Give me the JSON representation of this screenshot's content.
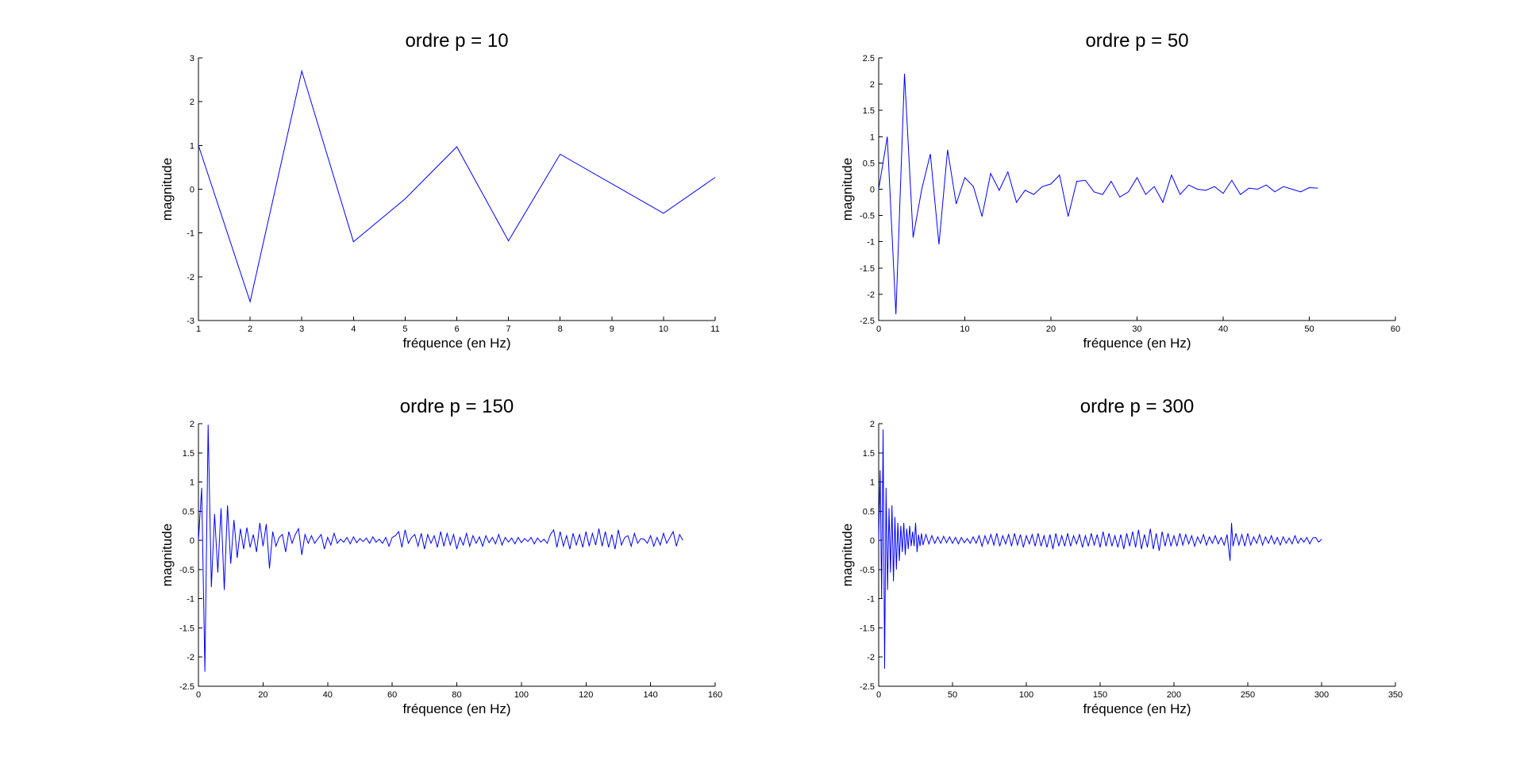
{
  "colors": {
    "line": "#0000ff",
    "axes": "#000000",
    "background": "#ffffff"
  },
  "chart_data": [
    {
      "type": "line",
      "title": "ordre p = 10",
      "xlabel": "fréquence (en Hz)",
      "ylabel": "magnitude",
      "xlim": [
        1,
        11
      ],
      "ylim": [
        -3,
        3
      ],
      "xticks": [
        1,
        2,
        3,
        4,
        5,
        6,
        7,
        8,
        9,
        10,
        11
      ],
      "yticks": [
        -3,
        -2,
        -1,
        0,
        1,
        2,
        3
      ],
      "grid": false,
      "series": [
        {
          "x": [
            1,
            2,
            3,
            4,
            5,
            6,
            7,
            8,
            10,
            11
          ],
          "y": [
            1.0,
            -2.57,
            2.7,
            -1.2,
            -0.22,
            0.97,
            -1.18,
            0.8,
            -0.55,
            0.27
          ]
        }
      ]
    },
    {
      "type": "line",
      "title": "ordre p = 50",
      "xlabel": "fréquence (en Hz)",
      "ylabel": "magnitude",
      "xlim": [
        0,
        60
      ],
      "ylim": [
        -2.5,
        2.5
      ],
      "xticks": [
        0,
        10,
        20,
        30,
        40,
        50,
        60
      ],
      "yticks": [
        -2.5,
        -2,
        -1.5,
        -1,
        -0.5,
        0,
        0.5,
        1,
        1.5,
        2,
        2.5
      ],
      "grid": false,
      "series": [
        {
          "x": [
            0,
            1,
            2,
            3,
            4,
            5,
            6,
            7,
            8,
            9,
            10,
            11,
            12,
            13,
            14,
            15,
            16,
            17,
            18,
            19,
            20,
            21,
            22,
            23,
            24,
            25,
            26,
            27,
            28,
            29,
            30,
            31,
            32,
            33,
            34,
            35,
            36,
            37,
            38,
            39,
            40,
            41,
            42,
            43,
            44,
            45,
            46,
            47,
            48,
            49,
            50,
            51
          ],
          "y": [
            0.0,
            1.0,
            -2.38,
            2.2,
            -0.92,
            0.0,
            0.67,
            -1.05,
            0.75,
            -0.28,
            0.22,
            0.05,
            -0.52,
            0.3,
            -0.02,
            0.33,
            -0.25,
            -0.02,
            -0.1,
            0.05,
            0.1,
            0.27,
            -0.52,
            0.15,
            0.17,
            -0.05,
            -0.1,
            0.15,
            -0.15,
            -0.05,
            0.22,
            -0.1,
            0.05,
            -0.25,
            0.27,
            -0.1,
            0.08,
            0.0,
            -0.02,
            0.05,
            -0.08,
            0.17,
            -0.1,
            0.02,
            0.0,
            0.08,
            -0.05,
            0.05,
            0.0,
            -0.05,
            0.03,
            0.02
          ]
        }
      ]
    },
    {
      "type": "line",
      "title": "ordre p = 150",
      "xlabel": "fréquence (en Hz)",
      "ylabel": "magnitude",
      "xlim": [
        0,
        160
      ],
      "ylim": [
        -2.5,
        2
      ],
      "xticks": [
        0,
        20,
        40,
        60,
        80,
        100,
        120,
        140,
        160
      ],
      "yticks": [
        -2.5,
        -2,
        -1.5,
        -1,
        -0.5,
        0,
        0.5,
        1,
        1.5,
        2
      ],
      "grid": false,
      "series": [
        {
          "x": [
            0,
            1,
            2,
            3,
            4,
            5,
            6,
            7,
            8,
            9,
            10,
            11,
            12,
            13,
            14,
            15,
            16,
            17,
            18,
            19,
            20,
            21,
            22,
            23,
            24,
            25,
            26,
            27,
            28,
            29,
            30,
            31,
            32,
            33,
            34,
            35,
            36,
            37,
            38,
            39,
            40,
            41,
            42,
            43,
            44,
            45,
            46,
            47,
            48,
            49,
            50,
            51,
            52,
            53,
            54,
            55,
            56,
            57,
            58,
            59,
            60,
            61,
            62,
            63,
            64,
            65,
            66,
            67,
            68,
            69,
            70,
            71,
            72,
            73,
            74,
            75,
            76,
            77,
            78,
            79,
            80,
            81,
            82,
            83,
            84,
            85,
            86,
            87,
            88,
            89,
            90,
            91,
            92,
            93,
            94,
            95,
            96,
            97,
            98,
            99,
            100,
            101,
            102,
            103,
            104,
            105,
            106,
            107,
            108,
            109,
            110,
            111,
            112,
            113,
            114,
            115,
            116,
            117,
            118,
            119,
            120,
            121,
            122,
            123,
            124,
            125,
            126,
            127,
            128,
            129,
            130,
            131,
            132,
            133,
            134,
            135,
            136,
            137,
            138,
            139,
            140,
            141,
            142,
            143,
            144,
            145,
            146,
            147,
            148,
            149,
            150
          ],
          "y": [
            0.0,
            0.9,
            -2.25,
            1.98,
            -0.8,
            0.45,
            -0.55,
            0.55,
            -0.85,
            0.6,
            -0.4,
            0.35,
            -0.3,
            0.2,
            -0.15,
            0.22,
            -0.12,
            0.1,
            -0.2,
            0.3,
            -0.1,
            0.28,
            -0.48,
            0.15,
            -0.1,
            0.05,
            0.1,
            -0.2,
            0.15,
            -0.05,
            0.1,
            0.2,
            -0.25,
            0.1,
            -0.05,
            0.08,
            -0.05,
            0.03,
            0.1,
            -0.15,
            0.05,
            -0.08,
            0.12,
            -0.05,
            0.02,
            -0.03,
            0.05,
            -0.06,
            0.06,
            -0.04,
            0.03,
            -0.02,
            0.04,
            -0.05,
            0.06,
            -0.03,
            0.02,
            -0.05,
            0.05,
            -0.1,
            0.05,
            0.08,
            0.15,
            -0.12,
            0.18,
            -0.05,
            0.05,
            0.1,
            -0.1,
            0.12,
            -0.15,
            0.1,
            -0.05,
            0.08,
            -0.12,
            0.15,
            -0.1,
            0.12,
            -0.08,
            0.1,
            -0.15,
            0.05,
            -0.08,
            0.12,
            -0.1,
            0.08,
            -0.05,
            0.06,
            -0.1,
            0.08,
            -0.04,
            0.05,
            -0.06,
            0.1,
            -0.08,
            0.05,
            -0.03,
            0.04,
            -0.06,
            0.05,
            -0.04,
            0.03,
            -0.02,
            0.05,
            -0.06,
            0.04,
            -0.03,
            0.02,
            -0.05,
            0.1,
            0.18,
            -0.12,
            0.15,
            -0.1,
            0.08,
            -0.15,
            0.12,
            -0.08,
            0.1,
            -0.12,
            0.15,
            -0.1,
            0.12,
            -0.08,
            0.2,
            -0.1,
            0.15,
            -0.12,
            0.1,
            -0.15,
            0.18,
            -0.08,
            0.05,
            0.08,
            -0.1,
            0.12,
            -0.05,
            0.03,
            0.02,
            -0.05,
            0.08,
            -0.1,
            0.05,
            -0.08,
            0.12,
            -0.05,
            0.05,
            0.15,
            -0.1,
            0.1,
            0.0
          ]
        }
      ]
    },
    {
      "type": "line",
      "title": "ordre p = 300",
      "xlabel": "fréquence (en Hz)",
      "ylabel": "magnitude",
      "xlim": [
        0,
        350
      ],
      "ylim": [
        -2.5,
        2
      ],
      "xticks": [
        0,
        50,
        100,
        150,
        200,
        250,
        300,
        350
      ],
      "yticks": [
        -2.5,
        -2,
        -1.5,
        -1,
        -0.5,
        0,
        0.5,
        1,
        1.5,
        2
      ],
      "grid": false,
      "series": [
        {
          "x": [
            0,
            1,
            2,
            3,
            4,
            5,
            6,
            7,
            8,
            9,
            10,
            11,
            12,
            13,
            14,
            15,
            16,
            17,
            18,
            19,
            20,
            21,
            22,
            23,
            24,
            25,
            26,
            27,
            28,
            29,
            30,
            32,
            34,
            36,
            38,
            40,
            42,
            44,
            46,
            48,
            50,
            52,
            54,
            56,
            58,
            60,
            62,
            64,
            66,
            68,
            70,
            72,
            74,
            76,
            78,
            80,
            82,
            84,
            86,
            88,
            90,
            92,
            94,
            96,
            98,
            100,
            102,
            104,
            106,
            108,
            110,
            112,
            114,
            116,
            118,
            120,
            122,
            124,
            126,
            128,
            130,
            132,
            134,
            136,
            138,
            140,
            142,
            144,
            146,
            148,
            150,
            152,
            154,
            156,
            158,
            160,
            162,
            164,
            166,
            168,
            170,
            172,
            174,
            176,
            178,
            180,
            182,
            184,
            186,
            188,
            190,
            192,
            194,
            196,
            198,
            200,
            202,
            204,
            206,
            208,
            210,
            212,
            214,
            216,
            218,
            220,
            222,
            224,
            226,
            228,
            230,
            232,
            234,
            236,
            238,
            239,
            240,
            242,
            244,
            246,
            248,
            250,
            252,
            254,
            256,
            258,
            260,
            262,
            264,
            266,
            268,
            270,
            272,
            274,
            276,
            278,
            280,
            282,
            284,
            286,
            288,
            290,
            292,
            294,
            296,
            298,
            300
          ],
          "y": [
            0.0,
            1.2,
            -1.0,
            1.9,
            -2.2,
            0.9,
            -0.85,
            0.55,
            -0.55,
            0.6,
            -0.7,
            0.4,
            -0.5,
            0.3,
            -0.35,
            0.25,
            -0.2,
            0.3,
            -0.25,
            0.2,
            -0.15,
            0.25,
            -0.1,
            0.15,
            -0.1,
            0.3,
            -0.2,
            0.1,
            -0.1,
            0.12,
            -0.08,
            0.1,
            -0.06,
            0.08,
            -0.05,
            0.06,
            -0.05,
            0.07,
            -0.04,
            0.06,
            -0.05,
            0.05,
            -0.06,
            0.05,
            -0.04,
            0.03,
            -0.05,
            0.06,
            -0.05,
            0.08,
            -0.1,
            0.08,
            -0.06,
            0.1,
            -0.08,
            0.12,
            -0.1,
            0.08,
            -0.06,
            0.1,
            -0.1,
            0.12,
            -0.08,
            0.1,
            -0.12,
            0.08,
            -0.06,
            0.1,
            -0.1,
            0.12,
            -0.1,
            0.08,
            -0.12,
            0.1,
            -0.15,
            0.12,
            -0.1,
            0.08,
            -0.1,
            0.12,
            -0.1,
            0.08,
            -0.06,
            0.1,
            -0.12,
            0.08,
            -0.1,
            0.12,
            -0.08,
            0.1,
            -0.12,
            0.15,
            -0.1,
            0.12,
            -0.1,
            0.08,
            -0.12,
            0.1,
            -0.15,
            0.12,
            -0.1,
            0.15,
            -0.12,
            0.18,
            -0.15,
            0.1,
            -0.12,
            0.2,
            -0.15,
            0.12,
            -0.18,
            0.15,
            -0.1,
            0.12,
            -0.1,
            0.08,
            -0.1,
            0.12,
            -0.08,
            0.1,
            -0.06,
            0.08,
            -0.1,
            0.06,
            -0.05,
            0.1,
            -0.08,
            0.06,
            -0.05,
            0.08,
            -0.06,
            0.05,
            -0.08,
            0.1,
            -0.35,
            0.3,
            -0.1,
            0.12,
            -0.08,
            0.1,
            -0.1,
            0.12,
            -0.08,
            0.06,
            -0.05,
            0.1,
            -0.08,
            0.06,
            -0.05,
            0.08,
            -0.06,
            0.05,
            -0.08,
            0.06,
            -0.05,
            0.04,
            -0.06,
            0.08,
            -0.05,
            0.04,
            -0.03,
            0.05,
            -0.06,
            0.04,
            0.05,
            -0.03,
            0.02
          ]
        }
      ]
    }
  ]
}
